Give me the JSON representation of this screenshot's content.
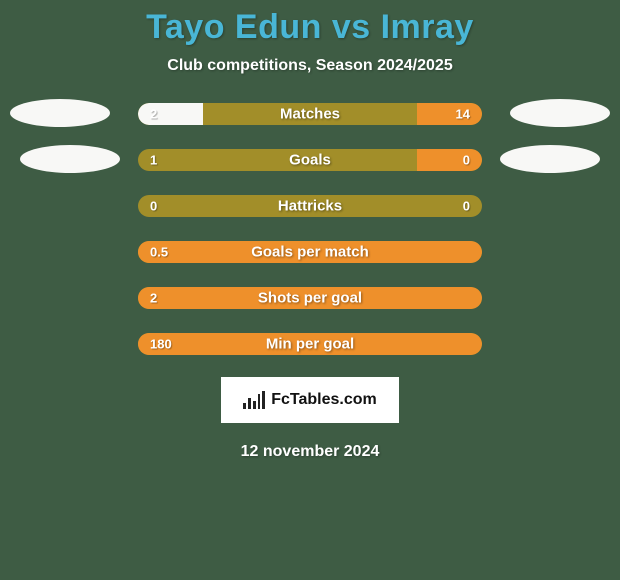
{
  "colors": {
    "bg": "#3e5c44",
    "title": "#49b6d6",
    "text_light": "#ffffff",
    "bar_track": "#a28e29",
    "bar_left": "#f8f8f6",
    "bar_right": "#ee902b",
    "ellipse": "#f8f8f6",
    "brand_bg": "#ffffff",
    "brand_text": "#111111",
    "brand_icon": "#222222"
  },
  "title": "Tayo Edun vs Imray",
  "subtitle": "Club competitions, Season 2024/2025",
  "bars": [
    {
      "label": "Matches",
      "left_val": "2",
      "right_val": "14",
      "left_pct": 19,
      "right_pct": 19
    },
    {
      "label": "Goals",
      "left_val": "1",
      "right_val": "0",
      "left_pct": 0,
      "right_pct": 19
    },
    {
      "label": "Hattricks",
      "left_val": "0",
      "right_val": "0",
      "left_pct": 0,
      "right_pct": 0
    },
    {
      "label": "Goals per match",
      "left_val": "0.5",
      "right_val": "",
      "left_pct": 0,
      "right_pct": 100
    },
    {
      "label": "Shots per goal",
      "left_val": "2",
      "right_val": "",
      "left_pct": 0,
      "right_pct": 100
    },
    {
      "label": "Min per goal",
      "left_val": "180",
      "right_val": "",
      "left_pct": 0,
      "right_pct": 100
    }
  ],
  "brand": "FcTables.com",
  "date": "12 november 2024"
}
